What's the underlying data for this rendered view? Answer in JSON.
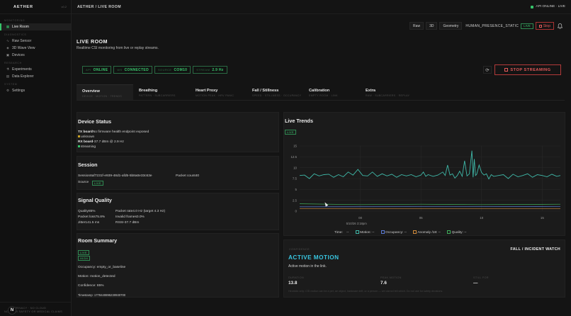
{
  "brand": {
    "name": "AETHER",
    "version": "v0.2"
  },
  "sidebar": {
    "sections": [
      {
        "label": "MONITORING",
        "items": [
          {
            "label": "Live Room",
            "icon": "grid-icon",
            "active": true
          }
        ]
      },
      {
        "label": "DIAGNOSTICS",
        "items": [
          {
            "label": "Raw Sensor",
            "icon": "pulse-icon"
          },
          {
            "label": "3D Wave View",
            "icon": "cube-icon"
          },
          {
            "label": "Devices",
            "icon": "chip-icon"
          }
        ]
      },
      {
        "label": "RESEARCH",
        "items": [
          {
            "label": "Experiments",
            "icon": "flask-icon"
          },
          {
            "label": "Data Explorer",
            "icon": "table-icon"
          }
        ]
      },
      {
        "label": "SYSTEM",
        "items": [
          {
            "label": "Settings",
            "icon": "gear-icon"
          }
        ]
      }
    ],
    "footer": {
      "avatar": "N",
      "line1": "PRIVACY · NO CLOUD",
      "line2": "NOT FOR SAFETY OR MEDICAL CLAIMS"
    }
  },
  "topbar": {
    "breadcrumb": "AETHER / LIVE ROOM",
    "api_status": "API ONLINE · LIVE"
  },
  "toolbar": {
    "raw": "Raw",
    "three_d": "3D",
    "geometry": "Geometry",
    "mode": "HUMAN_PRESENCE_STATIC",
    "live": "LIVE",
    "stop": "Stop"
  },
  "page": {
    "title": "LIVE ROOM",
    "subtitle": "Realtime CSI monitoring from live or replay streams."
  },
  "pills": [
    {
      "key": "API",
      "value": "ONLINE"
    },
    {
      "key": "WS",
      "value": "CONNECTED"
    },
    {
      "key": "SOURCE",
      "value": "COM10"
    },
    {
      "key": "STREAM",
      "value": "2.9 Hz"
    }
  ],
  "stream_button": "STOP STREAMING",
  "tabs": [
    {
      "label": "Overview",
      "sub": "DEVICE · MOTION · TRENDS",
      "active": true
    },
    {
      "label": "Breathing",
      "sub": "PATTERN · SUBCARRIERS"
    },
    {
      "label": "Heart Proxy",
      "sub": "MOTION PEAK · HRV PANIC"
    },
    {
      "label": "Fall / Stillness",
      "sub": "SPEED · STILLNESS · OCCUPANCY"
    },
    {
      "label": "Calibration",
      "sub": "EMPTY ROOM · LINK"
    },
    {
      "label": "Extra",
      "sub": "RAW · SUBCARRIERS · REPLAY"
    }
  ],
  "device_status": {
    "title": "Device Status",
    "tx_label": "TX board",
    "tx_value": "No firmware health endpoint exposed",
    "tx_state": "unknown",
    "rx_label": "RX board",
    "rx_value": "-37.7 dBm @ 2.9 Hz",
    "rx_state": "streaming"
  },
  "session": {
    "title": "Session",
    "id_label": "Session",
    "id_value": "8af7231f-e939-48d1-afd5-5b8a0e33c63e",
    "count_label": "Packet count",
    "count_value": "40",
    "source_label": "Source",
    "source_badge": "LIVE"
  },
  "signal": {
    "title": "Signal Quality",
    "rows": [
      [
        {
          "label": "Quality",
          "value": "85%"
        },
        {
          "label": "Packet rate",
          "value": "4.0 Hz (target 4.3 Hz)"
        }
      ],
      [
        {
          "label": "Packet loss",
          "value": "75.8%"
        },
        {
          "label": "Invalid frames",
          "value": "0.0%"
        }
      ],
      [
        {
          "label": "Jitter",
          "value": "141.5 ms"
        },
        {
          "label": "RSSI",
          "value": "-37.7 dBm"
        }
      ]
    ]
  },
  "room": {
    "title": "Room Summary",
    "badges": [
      "LIVE",
      "HIGH"
    ],
    "occupancy": "Occupancy: empty_or_baseline",
    "motion": "Motion: motion_detected",
    "confidence": "Confidence: 85%",
    "timestamp": "Timestamp: 1778440895230930700"
  },
  "trends": {
    "title": "Live Trends",
    "badge": "LIVE",
    "x_label": "5/10/26 3:18pm",
    "legend_title": "Time:",
    "legend": [
      {
        "name": "Motion:",
        "value": "--",
        "color": "#3fb8a8"
      },
      {
        "name": "Occupancy:",
        "value": "--",
        "color": "#5b7bd6"
      },
      {
        "name": "Anomaly /18:",
        "value": "--",
        "color": "#d08a3a"
      },
      {
        "name": "Quality:",
        "value": "--",
        "color": "#3fae5a"
      }
    ]
  },
  "chart_data": {
    "type": "line",
    "x_ticks": [
      "00",
      "05",
      "10",
      "15"
    ],
    "xlim": [
      -5,
      16.5
    ],
    "ylim": [
      0,
      15
    ],
    "y_ticks": [
      "0",
      "2.5",
      "5",
      "7.5",
      "10",
      "12.5",
      "15"
    ],
    "grid": true,
    "legend_placement": "bottom",
    "series": [
      {
        "name": "Motion",
        "color": "#3fb8a8",
        "points": [
          [
            -5,
            8.2
          ],
          [
            -4.6,
            8.3
          ],
          [
            -4.2,
            7.5
          ],
          [
            -3.8,
            8.6
          ],
          [
            -3.4,
            8.1
          ],
          [
            -3,
            8.4
          ],
          [
            -2.6,
            8.5
          ],
          [
            -2.2,
            7.8
          ],
          [
            -1.8,
            8.4
          ],
          [
            -1.4,
            7.9
          ],
          [
            -1,
            9.0
          ],
          [
            -0.6,
            8.3
          ],
          [
            -0.2,
            9.6
          ],
          [
            0.2,
            8.2
          ],
          [
            0.6,
            8.1
          ],
          [
            1,
            9.0
          ],
          [
            1.4,
            8.0
          ],
          [
            1.8,
            8.6
          ],
          [
            2.2,
            8.1
          ],
          [
            2.6,
            8.5
          ],
          [
            3,
            7.8
          ],
          [
            3.4,
            8.4
          ],
          [
            3.8,
            8.1
          ],
          [
            4.2,
            8.4
          ],
          [
            4.6,
            7.9
          ],
          [
            5,
            8.3
          ],
          [
            5.2,
            9.0
          ],
          [
            5.4,
            8.0
          ],
          [
            5.6,
            8.4
          ],
          [
            6,
            8.0
          ],
          [
            6.4,
            8.3
          ],
          [
            6.8,
            9.0
          ],
          [
            7.0,
            8.2
          ],
          [
            7.2,
            10.6
          ],
          [
            7.4,
            8.3
          ],
          [
            7.6,
            8.6
          ],
          [
            7.8,
            7.6
          ],
          [
            8.0,
            8.2
          ],
          [
            8.2,
            9.2
          ],
          [
            8.4,
            8.0
          ],
          [
            8.6,
            11.6
          ],
          [
            8.8,
            8.1
          ],
          [
            9,
            8.6
          ],
          [
            9.2,
            13.9
          ],
          [
            9.3,
            7.8
          ],
          [
            9.4,
            12.0
          ],
          [
            9.5,
            8.2
          ],
          [
            9.6,
            8.5
          ],
          [
            9.8,
            10.6
          ],
          [
            10,
            8.9
          ],
          [
            10.2,
            8.3
          ],
          [
            10.4,
            8.6
          ],
          [
            10.6,
            7.4
          ],
          [
            10.8,
            8.4
          ],
          [
            11,
            8.0
          ],
          [
            11.4,
            8.2
          ],
          [
            11.8,
            8.4
          ],
          [
            12.2,
            7.5
          ],
          [
            12.6,
            8.5
          ],
          [
            13,
            7.9
          ],
          [
            13.4,
            8.2
          ],
          [
            13.8,
            8.6
          ],
          [
            14.2,
            7.8
          ],
          [
            14.6,
            8.4
          ],
          [
            15,
            8.2
          ],
          [
            15.4,
            7.9
          ],
          [
            15.8,
            8.5
          ],
          [
            16.2,
            8.0
          ],
          [
            16.5,
            8.2
          ]
        ]
      },
      {
        "name": "Occupancy",
        "color": "#5b7bd6",
        "points": [
          [
            -5,
            1.0
          ],
          [
            16.5,
            1.1
          ]
        ]
      },
      {
        "name": "Anomaly /18",
        "color": "#d08a3a",
        "points": [
          [
            -5,
            0.6
          ],
          [
            16.5,
            0.6
          ]
        ]
      },
      {
        "name": "Quality",
        "color": "#3fae5a",
        "points": [
          [
            -5,
            1.7
          ],
          [
            0,
            1.5
          ],
          [
            5,
            1.6
          ],
          [
            10,
            1.5
          ],
          [
            16.5,
            1.6
          ]
        ]
      }
    ]
  },
  "alert": {
    "kicker": "CONFIDENCE",
    "title": "ACTIVE MOTION",
    "corner": "FALL / INCIDENT WATCH",
    "desc": "Active motion in the link.",
    "metrics": [
      {
        "label": "DURATION",
        "value": "13.8"
      },
      {
        "label": "PEAK MOTION",
        "value": "7.6"
      },
      {
        "label": "STILL FOR",
        "value": "—"
      }
    ],
    "disclaimer": "Heuristic only: CSI motion can be a pet, air object, hardware drift, or a person — we cannot tell which. Do not use for safety decisions."
  },
  "colors": {
    "accent": "#36c46a",
    "danger": "#e65a5a",
    "chart_line": "#3fb8a8"
  }
}
